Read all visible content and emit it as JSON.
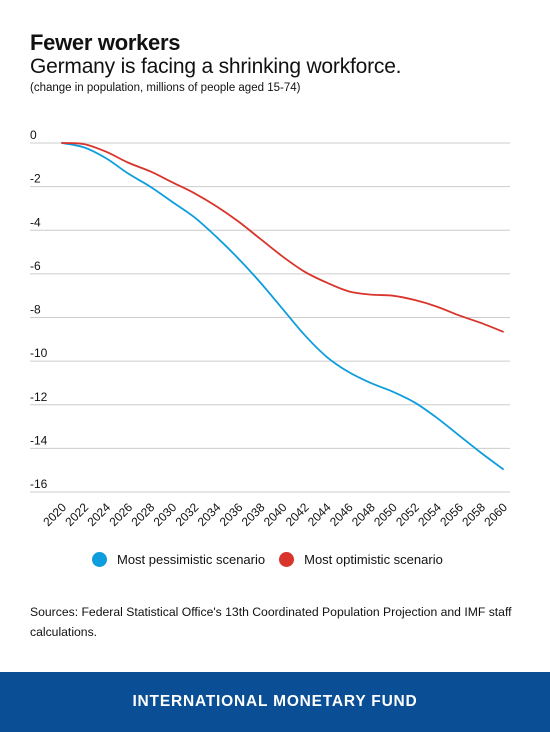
{
  "header": {
    "title": "Fewer workers",
    "subtitle": "Germany is facing a shrinking workforce.",
    "note": "(change in population, millions of people aged 15-74)"
  },
  "chart_data": {
    "type": "line",
    "x": [
      2020,
      2022,
      2024,
      2026,
      2028,
      2030,
      2032,
      2034,
      2036,
      2038,
      2040,
      2042,
      2044,
      2046,
      2048,
      2050,
      2052,
      2054,
      2056,
      2058,
      2060
    ],
    "x_ticks": [
      "2020",
      "2022",
      "2024",
      "2026",
      "2028",
      "2030",
      "2032",
      "2034",
      "2036",
      "2038",
      "2040",
      "2042",
      "2044",
      "2046",
      "2048",
      "2050",
      "2052",
      "2054",
      "2056",
      "2058",
      "2060"
    ],
    "y_ticks": [
      0,
      -2,
      -4,
      -6,
      -8,
      -10,
      -12,
      -14,
      -16
    ],
    "ylim": [
      -16,
      0
    ],
    "xlim": [
      2020,
      2060
    ],
    "grid": true,
    "legend": "bottom",
    "series": [
      {
        "name": "Most pessimistic scenario",
        "color": "#0e9ddd",
        "values": [
          0,
          -0.2,
          -0.7,
          -1.4,
          -2.0,
          -2.7,
          -3.4,
          -4.3,
          -5.3,
          -6.4,
          -7.6,
          -8.8,
          -9.8,
          -10.5,
          -11.0,
          -11.4,
          -11.9,
          -12.6,
          -13.4,
          -14.2,
          -14.95
        ]
      },
      {
        "name": "Most optimistic scenario",
        "color": "#d9342b",
        "values": [
          0,
          -0.05,
          -0.4,
          -0.9,
          -1.3,
          -1.8,
          -2.3,
          -2.9,
          -3.6,
          -4.4,
          -5.2,
          -5.9,
          -6.4,
          -6.8,
          -6.95,
          -7.0,
          -7.2,
          -7.5,
          -7.9,
          -8.25,
          -8.65
        ]
      }
    ]
  },
  "sources": "Sources: Federal Statistical Office's 13th Coordinated Population Projection and IMF staff calculations.",
  "footer": "INTERNATIONAL MONETARY FUND"
}
